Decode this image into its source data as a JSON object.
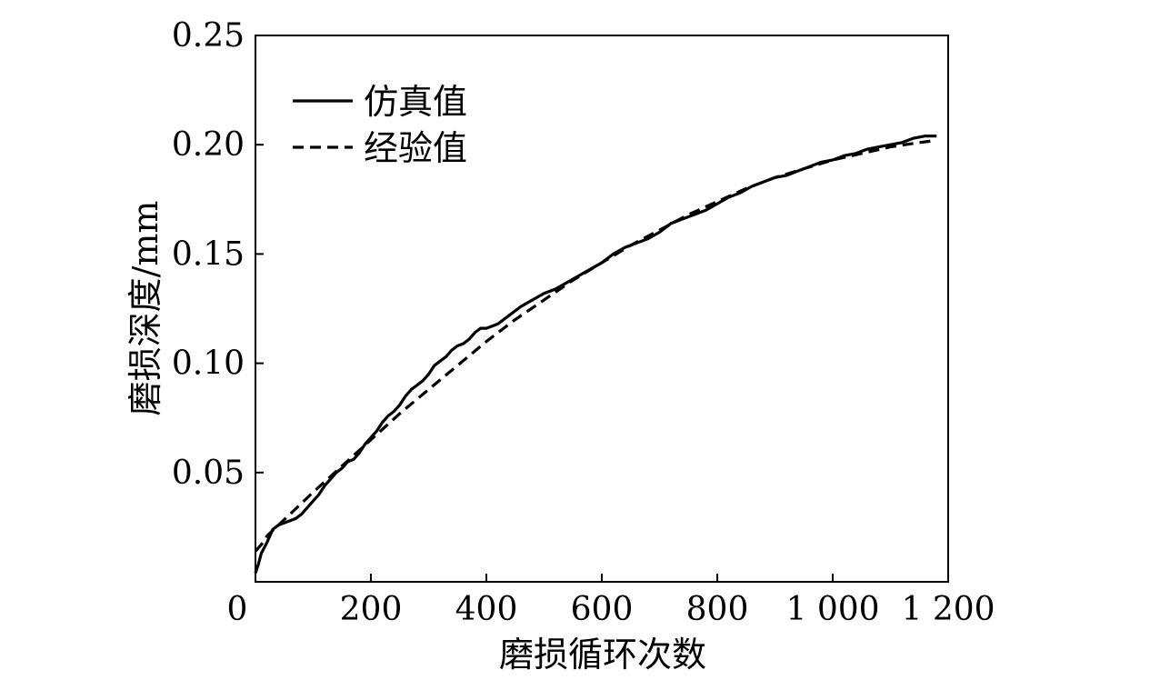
{
  "chart_data": {
    "type": "line",
    "title": "",
    "xlabel": "磨损循环次数",
    "ylabel": "磨损深度/mm",
    "xlim": [
      0,
      1200
    ],
    "ylim": [
      0,
      0.25
    ],
    "grid": false,
    "legend_position": "top-left",
    "x_ticks": [
      0,
      200,
      400,
      600,
      800,
      1000,
      1200
    ],
    "x_tick_labels": [
      "0",
      "200",
      "400",
      "600",
      "800",
      "1 000",
      "1 200"
    ],
    "y_ticks": [
      0.05,
      0.1,
      0.15,
      0.2,
      0.25
    ],
    "y_tick_labels": [
      "0.05",
      "0.10",
      "0.15",
      "0.20",
      "0.25"
    ],
    "series": [
      {
        "name": "仿真值",
        "style": "solid",
        "color": "#000000",
        "x": [
          0,
          5,
          10,
          20,
          30,
          40,
          50,
          60,
          70,
          80,
          90,
          100,
          110,
          120,
          130,
          140,
          150,
          160,
          170,
          180,
          190,
          200,
          210,
          220,
          230,
          240,
          250,
          260,
          270,
          280,
          290,
          300,
          310,
          320,
          330,
          340,
          350,
          360,
          370,
          380,
          390,
          400,
          410,
          420,
          430,
          440,
          450,
          460,
          480,
          500,
          520,
          540,
          560,
          580,
          600,
          620,
          640,
          660,
          680,
          700,
          720,
          740,
          760,
          780,
          800,
          820,
          840,
          860,
          880,
          900,
          920,
          940,
          960,
          980,
          1000,
          1020,
          1040,
          1060,
          1080,
          1100,
          1120,
          1140,
          1160,
          1180
        ],
        "y": [
          0.004,
          0.008,
          0.013,
          0.018,
          0.024,
          0.026,
          0.027,
          0.028,
          0.029,
          0.031,
          0.034,
          0.037,
          0.04,
          0.044,
          0.047,
          0.05,
          0.052,
          0.055,
          0.056,
          0.059,
          0.063,
          0.066,
          0.069,
          0.073,
          0.076,
          0.078,
          0.081,
          0.085,
          0.088,
          0.09,
          0.092,
          0.095,
          0.099,
          0.101,
          0.103,
          0.106,
          0.108,
          0.109,
          0.111,
          0.114,
          0.116,
          0.116,
          0.117,
          0.118,
          0.12,
          0.122,
          0.124,
          0.126,
          0.129,
          0.132,
          0.134,
          0.137,
          0.14,
          0.143,
          0.146,
          0.15,
          0.153,
          0.155,
          0.157,
          0.16,
          0.164,
          0.166,
          0.168,
          0.17,
          0.173,
          0.176,
          0.178,
          0.181,
          0.183,
          0.185,
          0.186,
          0.188,
          0.19,
          0.192,
          0.193,
          0.195,
          0.196,
          0.198,
          0.199,
          0.2,
          0.201,
          0.203,
          0.204,
          0.204
        ]
      },
      {
        "name": "经验值",
        "style": "dashed",
        "color": "#000000",
        "x": [
          0,
          10,
          20,
          40,
          60,
          80,
          100,
          150,
          200,
          250,
          300,
          350,
          400,
          450,
          500,
          550,
          600,
          650,
          700,
          750,
          800,
          850,
          900,
          950,
          1000,
          1050,
          1100,
          1150,
          1180
        ],
        "y": [
          0.014,
          0.017,
          0.021,
          0.026,
          0.031,
          0.036,
          0.041,
          0.053,
          0.065,
          0.077,
          0.088,
          0.099,
          0.11,
          0.12,
          0.129,
          0.138,
          0.146,
          0.154,
          0.161,
          0.168,
          0.174,
          0.18,
          0.185,
          0.189,
          0.193,
          0.196,
          0.199,
          0.201,
          0.202
        ]
      }
    ]
  }
}
